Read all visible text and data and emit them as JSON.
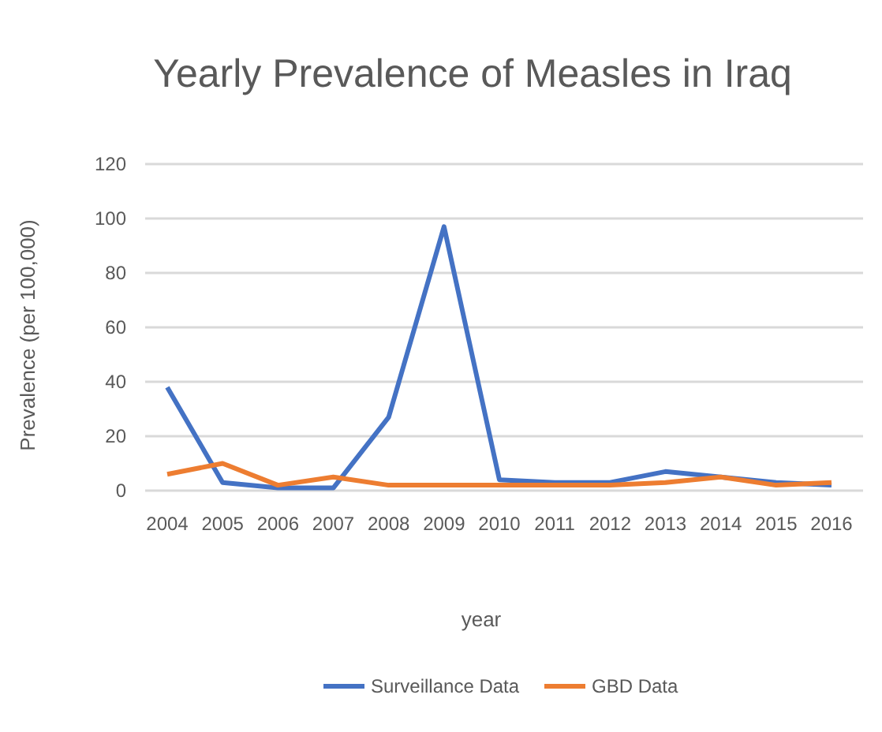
{
  "chart_data": {
    "type": "line",
    "title": "Yearly Prevalence of Measles in Iraq",
    "xlabel": "year",
    "ylabel": "Prevalence (per 100,000)",
    "categories": [
      "2004",
      "2005",
      "2006",
      "2007",
      "2008",
      "2009",
      "2010",
      "2011",
      "2012",
      "2013",
      "2014",
      "2015",
      "2016"
    ],
    "series": [
      {
        "name": "Surveillance Data",
        "color": "#4472c4",
        "values": [
          38,
          3,
          1,
          1,
          27,
          97,
          4,
          3,
          3,
          7,
          5,
          3,
          2
        ]
      },
      {
        "name": "GBD Data",
        "color": "#ed7d31",
        "values": [
          6,
          10,
          2,
          5,
          2,
          2,
          2,
          2,
          2,
          3,
          5,
          2,
          3
        ]
      }
    ],
    "ylim": [
      0,
      120
    ],
    "yticks": [
      0,
      20,
      40,
      60,
      80,
      100,
      120
    ],
    "grid": "y",
    "legend": "bottom",
    "marker": "none",
    "line_style": "solid"
  }
}
